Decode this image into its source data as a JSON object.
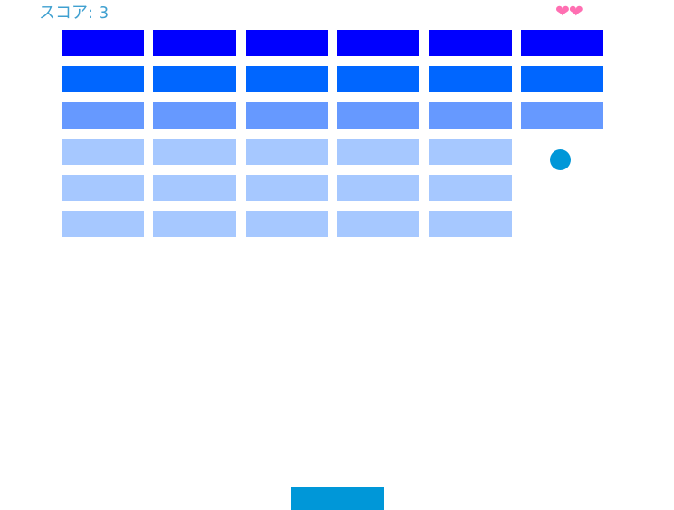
{
  "hud": {
    "score_text": "スコア: 3",
    "lives_text": "❤❤",
    "lives": 2
  },
  "colors": {
    "row0": "#0000ff",
    "row1": "#0066ff",
    "row2": "#6699ff",
    "row3": "#a6c8ff",
    "ball": "#0097d8",
    "paddle": "#0097d8",
    "score": "#3fa0d0",
    "hearts": "#ff6fb2"
  },
  "bricks": [
    [
      true,
      true,
      true,
      true,
      true,
      true
    ],
    [
      true,
      true,
      true,
      true,
      true,
      true
    ],
    [
      true,
      true,
      true,
      true,
      true,
      true
    ],
    [
      true,
      true,
      true,
      true,
      true,
      false
    ],
    [
      true,
      true,
      true,
      true,
      true,
      false
    ],
    [
      true,
      true,
      true,
      true,
      true,
      false
    ]
  ],
  "brick_row_colors": [
    "row0",
    "row1",
    "row2",
    "row3",
    "row3",
    "row3"
  ]
}
